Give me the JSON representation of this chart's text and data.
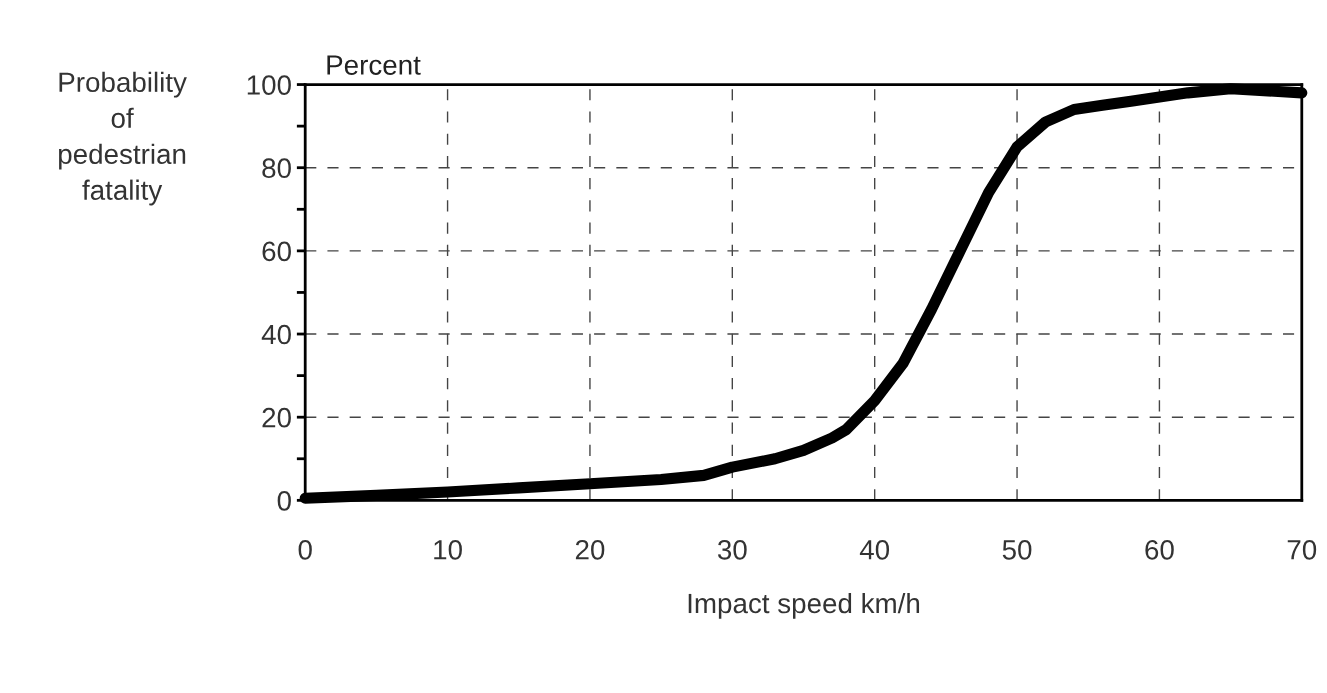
{
  "chart_data": {
    "type": "line",
    "xlabel": "Impact speed km/h",
    "ylabel": "Probability of pedestrian fatality",
    "annotations": [
      "Percent"
    ],
    "x": [
      0,
      5,
      10,
      15,
      20,
      25,
      28,
      30,
      33,
      35,
      37,
      38,
      40,
      42,
      44,
      46,
      48,
      50,
      52,
      54,
      56,
      58,
      60,
      62,
      65,
      70
    ],
    "series": [
      {
        "color": "#000000",
        "values": [
          0.5,
          1.2,
          2,
          3,
          4,
          5,
          6,
          8,
          10,
          12,
          15,
          17,
          24,
          33,
          46,
          60,
          74,
          85,
          91,
          94,
          95,
          96,
          97,
          98,
          99,
          98
        ]
      }
    ],
    "xlim": [
      0,
      70
    ],
    "ylim": [
      0,
      100
    ],
    "xticks": [
      0,
      10,
      20,
      30,
      40,
      50,
      60,
      70
    ],
    "yticks": [
      0,
      {
        "value": 10,
        "label": null
      },
      20,
      {
        "value": 30,
        "label": null
      },
      40,
      {
        "value": 50,
        "label": null
      },
      60,
      {
        "value": 70,
        "label": null
      },
      80,
      {
        "value": 90,
        "label": null
      },
      100
    ],
    "grid": true,
    "marker": "none",
    "line_style": "solid"
  }
}
